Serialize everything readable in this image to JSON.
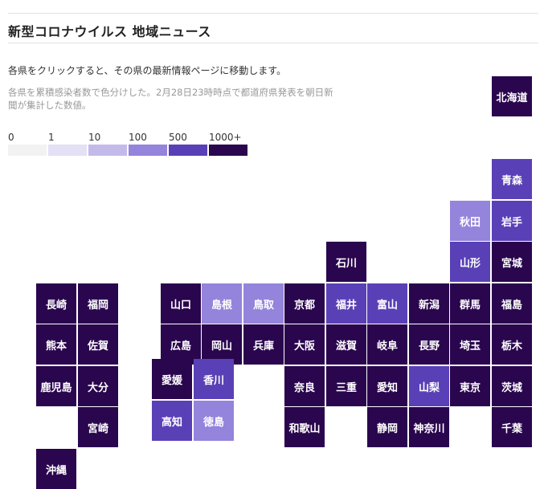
{
  "header": {
    "title": "新型コロナウイルス 地域ニュース"
  },
  "instruction": "各県をクリックすると、その県の最新情報ページに移動します。",
  "note": "各県を累積感染者数で色分けした。2月28日23時時点で都道府県発表を朝日新聞が集計した数値。",
  "legend": {
    "items": [
      {
        "label": "0",
        "color": "#f2f2f2"
      },
      {
        "label": "1",
        "color": "#e4e0f5"
      },
      {
        "label": "10",
        "color": "#c4baea"
      },
      {
        "label": "100",
        "color": "#9484dc"
      },
      {
        "label": "500",
        "color": "#5a40b7"
      },
      {
        "label": "1000+",
        "color": "#2a064e"
      }
    ]
  },
  "map": {
    "prefectures": [
      {
        "name": "北海道",
        "level": 5,
        "col": 11,
        "row": 0
      },
      {
        "name": "青森",
        "level": 4,
        "col": 11,
        "row": 2
      },
      {
        "name": "秋田",
        "level": 3,
        "col": 10,
        "row": 3
      },
      {
        "name": "岩手",
        "level": 4,
        "col": 11,
        "row": 3
      },
      {
        "name": "石川",
        "level": 5,
        "col": 7,
        "row": 4
      },
      {
        "name": "山形",
        "level": 4,
        "col": 10,
        "row": 4
      },
      {
        "name": "宮城",
        "level": 5,
        "col": 11,
        "row": 4
      },
      {
        "name": "長崎",
        "level": 5,
        "col": 0,
        "row": 5
      },
      {
        "name": "福岡",
        "level": 5,
        "col": 1,
        "row": 5
      },
      {
        "name": "山口",
        "level": 5,
        "col": 3,
        "row": 5
      },
      {
        "name": "島根",
        "level": 3,
        "col": 4,
        "row": 5
      },
      {
        "name": "鳥取",
        "level": 3,
        "col": 5,
        "row": 5
      },
      {
        "name": "京都",
        "level": 5,
        "col": 6,
        "row": 5
      },
      {
        "name": "福井",
        "level": 4,
        "col": 7,
        "row": 5
      },
      {
        "name": "富山",
        "level": 4,
        "col": 8,
        "row": 5
      },
      {
        "name": "新潟",
        "level": 5,
        "col": 9,
        "row": 5
      },
      {
        "name": "群馬",
        "level": 5,
        "col": 10,
        "row": 5
      },
      {
        "name": "福島",
        "level": 5,
        "col": 11,
        "row": 5
      },
      {
        "name": "熊本",
        "level": 5,
        "col": 0,
        "row": 6
      },
      {
        "name": "佐賀",
        "level": 5,
        "col": 1,
        "row": 6
      },
      {
        "name": "広島",
        "level": 5,
        "col": 3,
        "row": 6
      },
      {
        "name": "岡山",
        "level": 5,
        "col": 4,
        "row": 6
      },
      {
        "name": "兵庫",
        "level": 5,
        "col": 5,
        "row": 6
      },
      {
        "name": "大阪",
        "level": 5,
        "col": 6,
        "row": 6
      },
      {
        "name": "滋賀",
        "level": 5,
        "col": 7,
        "row": 6
      },
      {
        "name": "岐阜",
        "level": 5,
        "col": 8,
        "row": 6
      },
      {
        "name": "長野",
        "level": 5,
        "col": 9,
        "row": 6
      },
      {
        "name": "埼玉",
        "level": 5,
        "col": 10,
        "row": 6
      },
      {
        "name": "栃木",
        "level": 5,
        "col": 11,
        "row": 6
      },
      {
        "name": "鹿児島",
        "level": 5,
        "col": 0,
        "row": 7
      },
      {
        "name": "大分",
        "level": 5,
        "col": 1,
        "row": 7
      },
      {
        "name": "奈良",
        "level": 5,
        "col": 6,
        "row": 7
      },
      {
        "name": "三重",
        "level": 5,
        "col": 7,
        "row": 7
      },
      {
        "name": "愛知",
        "level": 5,
        "col": 8,
        "row": 7
      },
      {
        "name": "山梨",
        "level": 4,
        "col": 9,
        "row": 7
      },
      {
        "name": "東京",
        "level": 5,
        "col": 10,
        "row": 7
      },
      {
        "name": "茨城",
        "level": 5,
        "col": 11,
        "row": 7
      },
      {
        "name": "宮崎",
        "level": 5,
        "col": 1,
        "row": 8
      },
      {
        "name": "和歌山",
        "level": 5,
        "col": 6,
        "row": 8
      },
      {
        "name": "静岡",
        "level": 5,
        "col": 8,
        "row": 8
      },
      {
        "name": "神奈川",
        "level": 5,
        "col": 9,
        "row": 8
      },
      {
        "name": "千葉",
        "level": 5,
        "col": 11,
        "row": 8
      },
      {
        "name": "沖縄",
        "level": 5,
        "col": 0,
        "row": 9
      }
    ],
    "shikoku": [
      {
        "name": "愛媛",
        "level": 5,
        "col": 0,
        "row": 0
      },
      {
        "name": "香川",
        "level": 4,
        "col": 1,
        "row": 0
      },
      {
        "name": "高知",
        "level": 4,
        "col": 0,
        "row": 1
      },
      {
        "name": "徳島",
        "level": 3,
        "col": 1,
        "row": 1
      }
    ]
  }
}
